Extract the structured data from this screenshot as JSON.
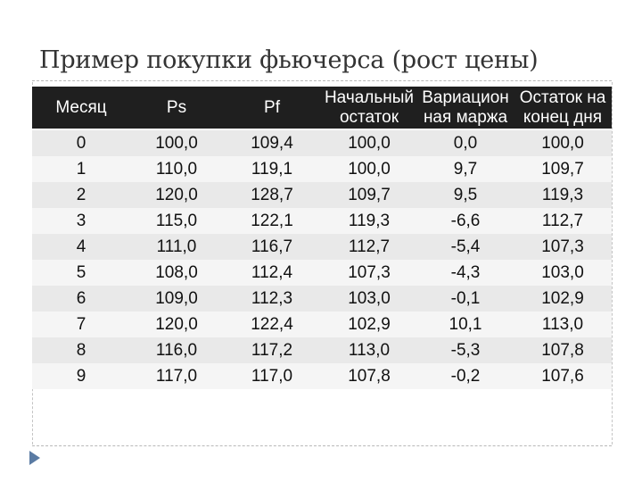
{
  "slide": {
    "title": "Пример покупки фьючерса (рост цены)"
  },
  "table": {
    "headers": [
      "Месяц",
      "Ps",
      "Pf",
      "Начальный\nостаток",
      "Вариацион\nная маржа",
      "Остаток на\nконец дня"
    ],
    "rows": [
      [
        "0",
        "100,0",
        "109,4",
        "100,0",
        "0,0",
        "100,0"
      ],
      [
        "1",
        "110,0",
        "119,1",
        "100,0",
        "9,7",
        "109,7"
      ],
      [
        "2",
        "120,0",
        "128,7",
        "109,7",
        "9,5",
        "119,3"
      ],
      [
        "3",
        "115,0",
        "122,1",
        "119,3",
        "-6,6",
        "112,7"
      ],
      [
        "4",
        "111,0",
        "116,7",
        "112,7",
        "-5,4",
        "107,3"
      ],
      [
        "5",
        "108,0",
        "112,4",
        "107,3",
        "-4,3",
        "103,0"
      ],
      [
        "6",
        "109,0",
        "112,3",
        "103,0",
        "-0,1",
        "102,9"
      ],
      [
        "7",
        "120,0",
        "122,4",
        "102,9",
        "10,1",
        "113,0"
      ],
      [
        "8",
        "116,0",
        "117,2",
        "113,0",
        "-5,3",
        "107,8"
      ],
      [
        "9",
        "117,0",
        "117,0",
        "107,8",
        "-0,2",
        "107,6"
      ]
    ]
  },
  "colors": {
    "header_bg": "#1f1f1f",
    "row_odd": "#e9e9e9",
    "row_even": "#f5f5f5",
    "arrow": "#5a7ba3"
  },
  "icons": {
    "bullet": "triangle-arrow-icon"
  }
}
